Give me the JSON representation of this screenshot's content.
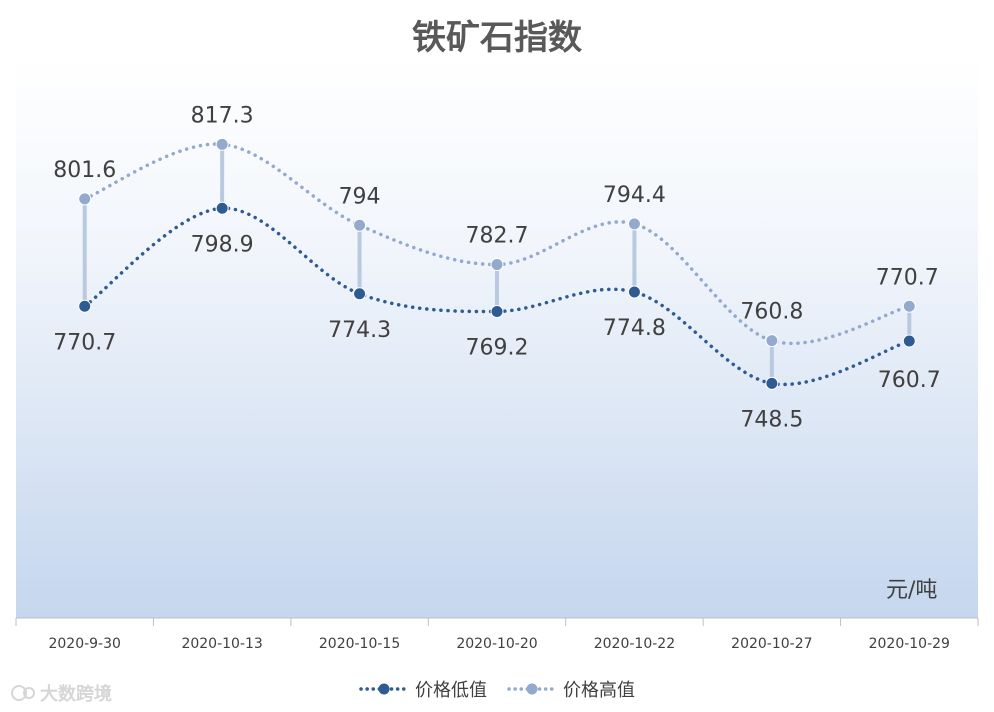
{
  "chart_data": {
    "type": "line",
    "title": "铁矿石指数",
    "unit": "元/吨",
    "categories": [
      "2020-9-30",
      "2020-10-13",
      "2020-10-15",
      "2020-10-20",
      "2020-10-22",
      "2020-10-27",
      "2020-10-29"
    ],
    "series": [
      {
        "name": "价格低值",
        "values": [
          770.7,
          798.9,
          774.3,
          769.2,
          774.8,
          748.5,
          760.7
        ],
        "color": "#2f5b93"
      },
      {
        "name": "价格高值",
        "values": [
          801.6,
          817.3,
          794,
          782.7,
          794.4,
          760.8,
          770.7
        ],
        "color": "#93a9cd"
      }
    ],
    "ylim": [
      681,
      843
    ],
    "grid": false,
    "legend_position": "bottom",
    "high_low_lines": true
  },
  "watermark": {
    "text": "大数跨境"
  }
}
